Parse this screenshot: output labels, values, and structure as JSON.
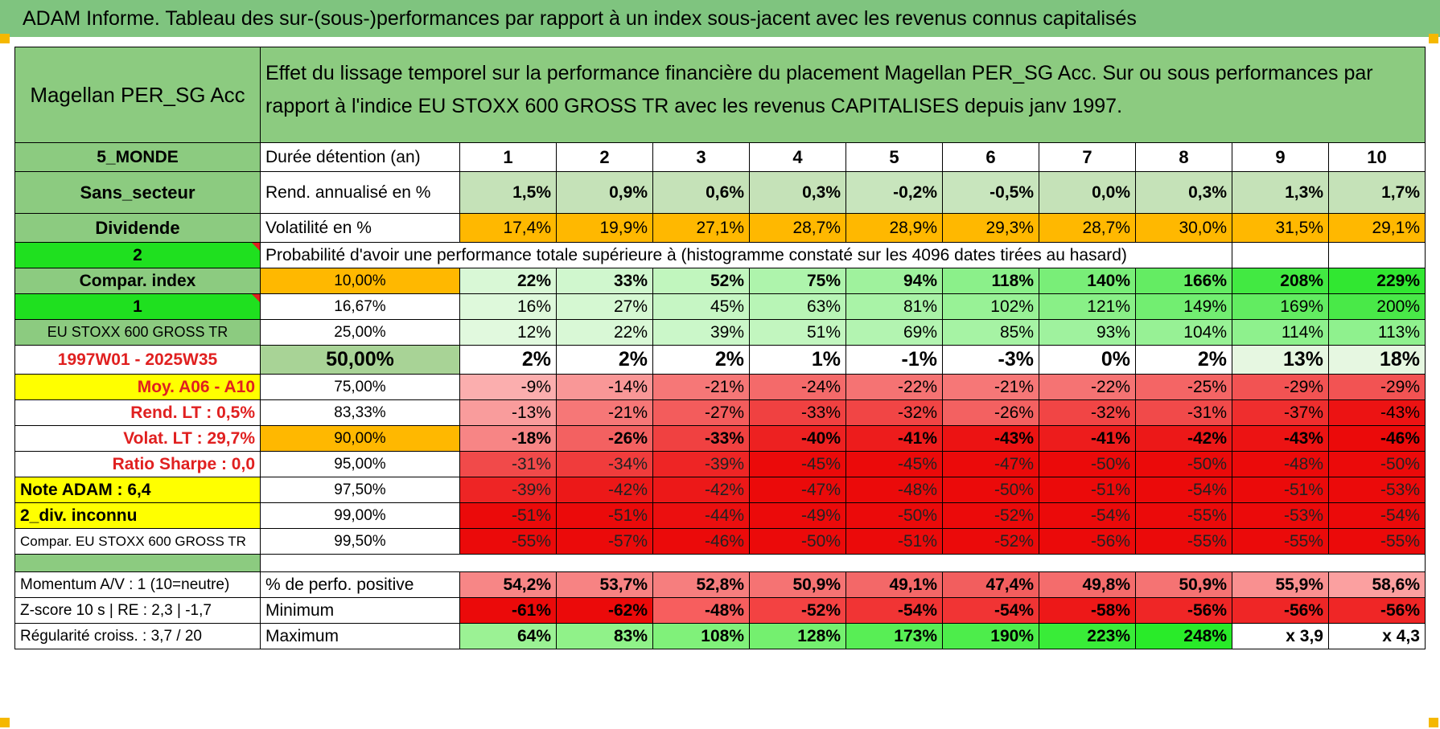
{
  "header": {
    "title": "ADAM Informe. Tableau des sur-(sous-)performances par rapport à un index sous-jacent avec les revenus connus capitalisés"
  },
  "fund": {
    "name": "Magellan PER_SG Acc",
    "description": "Effet du lissage temporel sur la performance financière du placement Magellan PER_SG Acc. Sur ou sous performances par rapport à l'indice EU STOXX 600 GROSS TR avec les revenus CAPITALISES depuis janv 1997."
  },
  "left_labels": {
    "zone": "5_MONDE",
    "sector": "Sans_secteur",
    "dividend": "Dividende",
    "code2": "2",
    "compar_index": "Compar. index",
    "code1": "1",
    "index_name": "EU STOXX 600 GROSS TR",
    "period": "1997W01 - 2025W35",
    "moy": "Moy. A06 - A10",
    "rend_lt": "Rend. LT :   0,5%",
    "volat_lt": "Volat. LT :   29,7%",
    "sharpe": "Ratio Sharpe :    0,0",
    "note_adam": "Note ADAM : 6,4",
    "div_inconnu": "2_div. inconnu",
    "compar_eu": "Compar. EU STOXX 600 GROSS TR",
    "momentum": "Momentum A/V : 1 (10=neutre)",
    "zscore": "Z-score 10 s | RE : 2,3 | -1,7",
    "regularite": "Régularité croiss. : 3,7 / 20"
  },
  "row_labels": {
    "duree": "Durée détention (an)",
    "rend": "Rend. annualisé en %",
    "volat": "Volatilité en %",
    "probabilite": "Probabilité d'avoir une performance totale supérieure à (histogramme constaté sur les 4096 dates tirées au hasard)",
    "positive": "% de perfo. positive",
    "minimum": "Minimum",
    "maximum": "Maximum"
  },
  "years": [
    "1",
    "2",
    "3",
    "4",
    "5",
    "6",
    "7",
    "8",
    "9",
    "10"
  ],
  "rend": [
    "1,5%",
    "0,9%",
    "0,6%",
    "0,3%",
    "-0,2%",
    "-0,5%",
    "0,0%",
    "0,3%",
    "1,3%",
    "1,7%"
  ],
  "volat": [
    "17,4%",
    "19,9%",
    "27,1%",
    "28,7%",
    "28,9%",
    "29,3%",
    "28,7%",
    "30,0%",
    "31,5%",
    "29,1%"
  ],
  "quantiles": [
    {
      "level": "10,00%",
      "values": [
        "22%",
        "33%",
        "52%",
        "75%",
        "94%",
        "118%",
        "140%",
        "166%",
        "208%",
        "229%"
      ]
    },
    {
      "level": "16,67%",
      "values": [
        "16%",
        "27%",
        "45%",
        "63%",
        "81%",
        "102%",
        "121%",
        "149%",
        "169%",
        "200%"
      ]
    },
    {
      "level": "25,00%",
      "values": [
        "12%",
        "22%",
        "39%",
        "51%",
        "69%",
        "85%",
        "93%",
        "104%",
        "114%",
        "113%"
      ]
    },
    {
      "level": "50,00%",
      "values": [
        "2%",
        "2%",
        "2%",
        "1%",
        "-1%",
        "-3%",
        "0%",
        "2%",
        "13%",
        "18%"
      ]
    },
    {
      "level": "75,00%",
      "values": [
        "-9%",
        "-14%",
        "-21%",
        "-24%",
        "-22%",
        "-21%",
        "-22%",
        "-25%",
        "-29%",
        "-29%"
      ]
    },
    {
      "level": "83,33%",
      "values": [
        "-13%",
        "-21%",
        "-27%",
        "-33%",
        "-32%",
        "-26%",
        "-32%",
        "-31%",
        "-37%",
        "-43%"
      ]
    },
    {
      "level": "90,00%",
      "values": [
        "-18%",
        "-26%",
        "-33%",
        "-40%",
        "-41%",
        "-43%",
        "-41%",
        "-42%",
        "-43%",
        "-46%"
      ]
    },
    {
      "level": "95,00%",
      "values": [
        "-31%",
        "-34%",
        "-39%",
        "-45%",
        "-45%",
        "-47%",
        "-50%",
        "-50%",
        "-48%",
        "-50%"
      ]
    },
    {
      "level": "97,50%",
      "values": [
        "-39%",
        "-42%",
        "-42%",
        "-47%",
        "-48%",
        "-50%",
        "-51%",
        "-54%",
        "-51%",
        "-53%"
      ]
    },
    {
      "level": "99,00%",
      "values": [
        "-51%",
        "-51%",
        "-44%",
        "-49%",
        "-50%",
        "-52%",
        "-54%",
        "-55%",
        "-53%",
        "-54%"
      ]
    },
    {
      "level": "99,50%",
      "values": [
        "-55%",
        "-57%",
        "-46%",
        "-50%",
        "-51%",
        "-52%",
        "-56%",
        "-55%",
        "-55%",
        "-55%"
      ]
    }
  ],
  "positive": [
    "54,2%",
    "53,7%",
    "52,8%",
    "50,9%",
    "49,1%",
    "47,4%",
    "49,8%",
    "50,9%",
    "55,9%",
    "58,6%"
  ],
  "minimum": [
    "-61%",
    "-62%",
    "-48%",
    "-52%",
    "-54%",
    "-54%",
    "-58%",
    "-56%",
    "-56%",
    "-56%"
  ],
  "maximum": [
    "64%",
    "83%",
    "108%",
    "128%",
    "173%",
    "190%",
    "223%",
    "248%",
    "x 3,9",
    "x 4,3"
  ],
  "colors": {
    "accent_green": "#7fc47f",
    "bright_green": "#1fe01f",
    "yellow": "#ffff00",
    "orange": "#ffb800",
    "red_text": "#e02020"
  }
}
